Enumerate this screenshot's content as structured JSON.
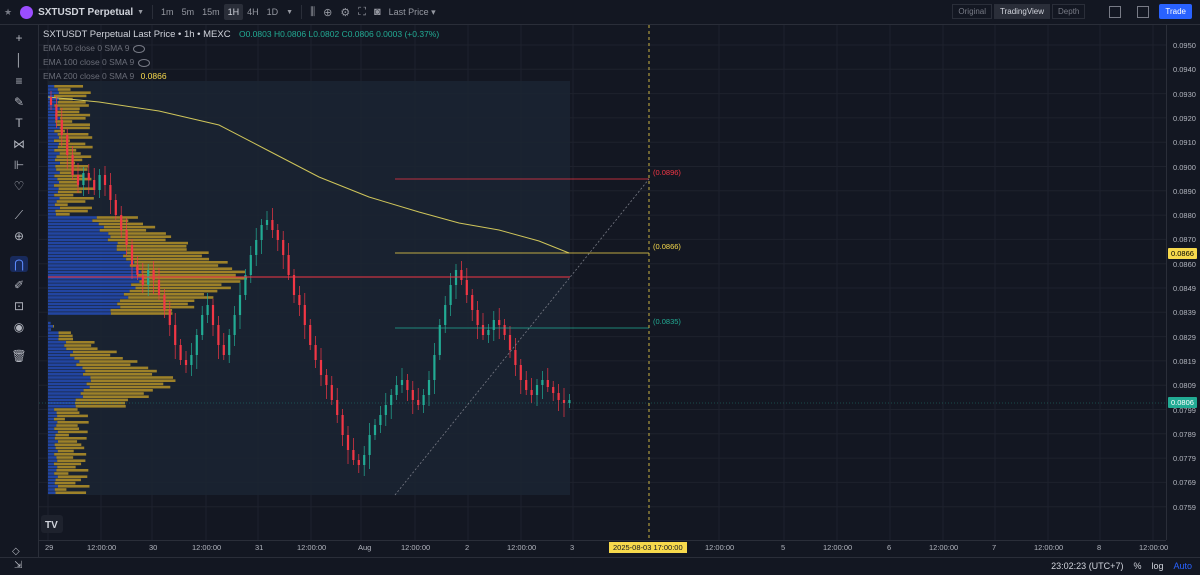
{
  "topbar": {
    "symbol": "SXTUSDT Perpetual",
    "intervals": [
      "1m",
      "5m",
      "15m",
      "1H",
      "4H",
      "1D"
    ],
    "active_interval": "1H",
    "price_type": "Last Price ▾",
    "views": [
      "Original",
      "TradingView",
      "Depth"
    ],
    "active_view": "TradingView",
    "trade_label": "Trade"
  },
  "legend": {
    "title": "SXTUSDT Perpetual Last Price • 1h • MEXC",
    "open": "O0.0803",
    "high": "H0.0806",
    "low": "L0.0802",
    "close": "C0.0806",
    "change": "0.0003 (+0.37%)",
    "ema50": "EMA 50 close 0 SMA 9",
    "ema100": "EMA 100 close 0 SMA 9",
    "ema200": "EMA 200 close 0 SMA 9",
    "ema200_value": "0.0866"
  },
  "price_axis": {
    "labels": [
      "0.0950",
      "0.0940",
      "0.0930",
      "0.0920",
      "0.0910",
      "0.0900",
      "0.0890",
      "0.0880",
      "0.0870",
      "0.0860",
      "0.0849",
      "0.0839",
      "0.0829",
      "0.0819",
      "0.0809",
      "0.0799",
      "0.0789",
      "0.0779",
      "0.0769",
      "0.0759"
    ],
    "current_tag": "0.0806",
    "ema_tag": "0.0866",
    "current_color": "#22ab94",
    "ema_color": "#f7d94c"
  },
  "time_axis": {
    "labels": [
      "29",
      "12:00:00",
      "30",
      "12:00:00",
      "31",
      "12:00:00",
      "Aug",
      "12:00:00",
      "2",
      "12:00:00",
      "3",
      "12:00:00",
      "5",
      "12:00:00",
      "6",
      "12:00:00",
      "7",
      "12:00:00",
      "8",
      "12:00:00"
    ],
    "crosshair_tag": "2025-08-03   17:00:00"
  },
  "annotations": {
    "level_high": "(0.0896)",
    "level_mid": "(0.0866)",
    "level_low": "(0.0835)"
  },
  "bottombar": {
    "clock": "23:02:23 (UTC+7)",
    "percent": "%",
    "log": "log",
    "auto": "Auto"
  },
  "left_toolbar_icons": [
    "crosshair-icon",
    "cursor-line-icon",
    "horizontal-lines-icon",
    "brush-icon",
    "text-icon",
    "pattern-icon",
    "forecast-icon",
    "heart-icon",
    "ruler-icon",
    "zoom-in-icon",
    "magnet-icon",
    "lock-draw-icon",
    "lock-icon",
    "eye-icon",
    "trash-icon"
  ],
  "colors": {
    "up": "#22ab94",
    "down": "#f23645",
    "ema": "#cfc55a",
    "vp_blue": "#2962ff",
    "vp_gold": "#c9a227"
  },
  "chart_data": {
    "type": "candlestick",
    "title": "SXTUSDT Perpetual Last Price • 1h • MEXC",
    "ylim": [
      0.0755,
      0.0955
    ],
    "levels": [
      0.0896,
      0.0866,
      0.0835
    ],
    "last_price": 0.0806,
    "ema200": 0.0866
  }
}
